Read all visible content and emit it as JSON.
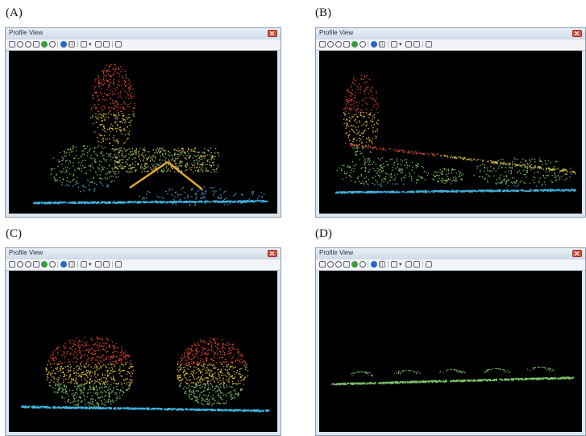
{
  "panels": [
    {
      "label": "(A)",
      "window_title": "Profile View"
    },
    {
      "label": "(B)",
      "window_title": "Profile View"
    },
    {
      "label": "(C)",
      "window_title": "Profile View"
    },
    {
      "label": "(D)",
      "window_title": "Profile View"
    }
  ],
  "toolbar": [
    "pan-icon",
    "zoom-in-icon",
    "zoom-out-icon",
    "hand-icon",
    "globe-icon",
    "refresh-icon",
    "sphere-icon",
    "measure-icon",
    "settings-icon",
    "dropdown-icon",
    "frame-icon",
    "screenshot-icon",
    "grid-icon"
  ],
  "colors": {
    "ground": "#3fb4e0",
    "low": "#7fc36a",
    "mid": "#e2c23a",
    "high": "#d9452a",
    "roof": "#e0a832",
    "background": "#000000"
  }
}
